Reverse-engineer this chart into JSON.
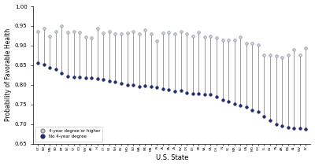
{
  "states": [
    "UT",
    "ND",
    "MN",
    "SD",
    "MT",
    "NE",
    "VT",
    "CO",
    "WY",
    "AK",
    "HI",
    "CT",
    "WI",
    "NH",
    "KS",
    "MO",
    "ND",
    "WA",
    "ME",
    "MA",
    "RI",
    "IA",
    "PA",
    "IA",
    "NV",
    "OR",
    "DE",
    "MI",
    "VA",
    "CA",
    "OH",
    "IN",
    "SC",
    "NM",
    "NC",
    "GA",
    "MO",
    "OK",
    "FL",
    "LA",
    "TN",
    "AR",
    "MS",
    "AL",
    "WV",
    "KY"
  ],
  "high_edu": [
    0.935,
    0.943,
    0.923,
    0.935,
    0.95,
    0.933,
    0.935,
    0.933,
    0.922,
    0.92,
    0.944,
    0.932,
    0.935,
    0.93,
    0.93,
    0.932,
    0.935,
    0.93,
    0.94,
    0.93,
    0.912,
    0.932,
    0.933,
    0.93,
    0.935,
    0.93,
    0.924,
    0.933,
    0.921,
    0.924,
    0.92,
    0.914,
    0.913,
    0.913,
    0.921,
    0.905,
    0.906,
    0.902,
    0.876,
    0.876,
    0.873,
    0.87,
    0.875,
    0.889,
    0.875,
    0.893
  ],
  "low_edu": [
    0.856,
    0.852,
    0.843,
    0.84,
    0.83,
    0.822,
    0.82,
    0.82,
    0.818,
    0.818,
    0.815,
    0.813,
    0.81,
    0.808,
    0.804,
    0.8,
    0.8,
    0.796,
    0.798,
    0.795,
    0.793,
    0.79,
    0.787,
    0.784,
    0.785,
    0.78,
    0.778,
    0.778,
    0.776,
    0.775,
    0.77,
    0.762,
    0.758,
    0.752,
    0.747,
    0.744,
    0.736,
    0.732,
    0.72,
    0.71,
    0.7,
    0.695,
    0.692,
    0.69,
    0.69,
    0.688
  ],
  "ylabel": "Probability of Favorable Health",
  "xlabel": "U.S. State",
  "ylim_low": 0.65,
  "ylim_high": 1.0,
  "yticks": [
    0.65,
    0.7,
    0.75,
    0.8,
    0.85,
    0.9,
    0.95,
    1.0
  ],
  "line_color": "#8c8c8c",
  "high_edu_color": "#c5cce0",
  "high_edu_edge": "#8c8c8c",
  "low_edu_color": "#1f2d6e",
  "low_edu_edge": "#1f2d6e",
  "legend_high": "4-year degree or higher",
  "legend_low": "No 4-year degree",
  "bg_color": "#f0f0f0"
}
